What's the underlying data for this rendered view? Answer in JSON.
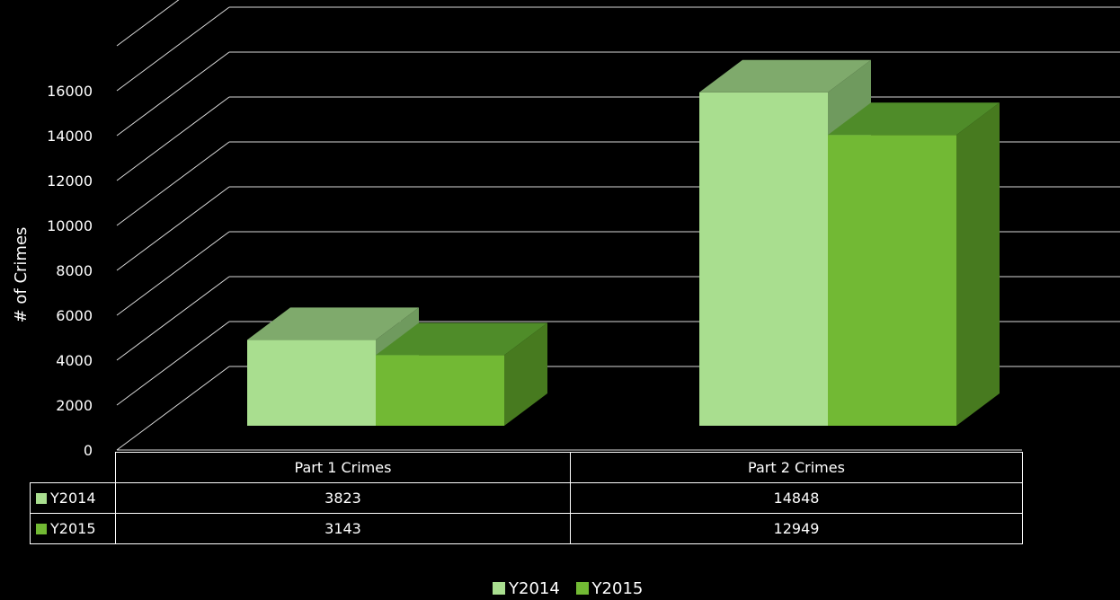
{
  "chart_data": {
    "type": "bar",
    "style": "3d-clustered-column",
    "categories": [
      "Part 1 Crimes",
      "Part 2 Crimes"
    ],
    "series": [
      {
        "name": "Y2014",
        "values": [
          3823,
          14848
        ],
        "color": "#a9de8f",
        "top_color": "#7faa6c",
        "side_color": "#6f9a5e"
      },
      {
        "name": "Y2015",
        "values": [
          3143,
          12949
        ],
        "color": "#72b934",
        "top_color": "#4f8c29",
        "side_color": "#477a1f"
      }
    ],
    "ylabel": "# of Crimes",
    "ylim": [
      0,
      16000
    ],
    "yticks": [
      "0",
      "2000",
      "4000",
      "6000",
      "8000",
      "10000",
      "12000",
      "14000",
      "16000"
    ],
    "grid": true,
    "data_table": true,
    "legend_position": "bottom",
    "background": "#000000"
  }
}
